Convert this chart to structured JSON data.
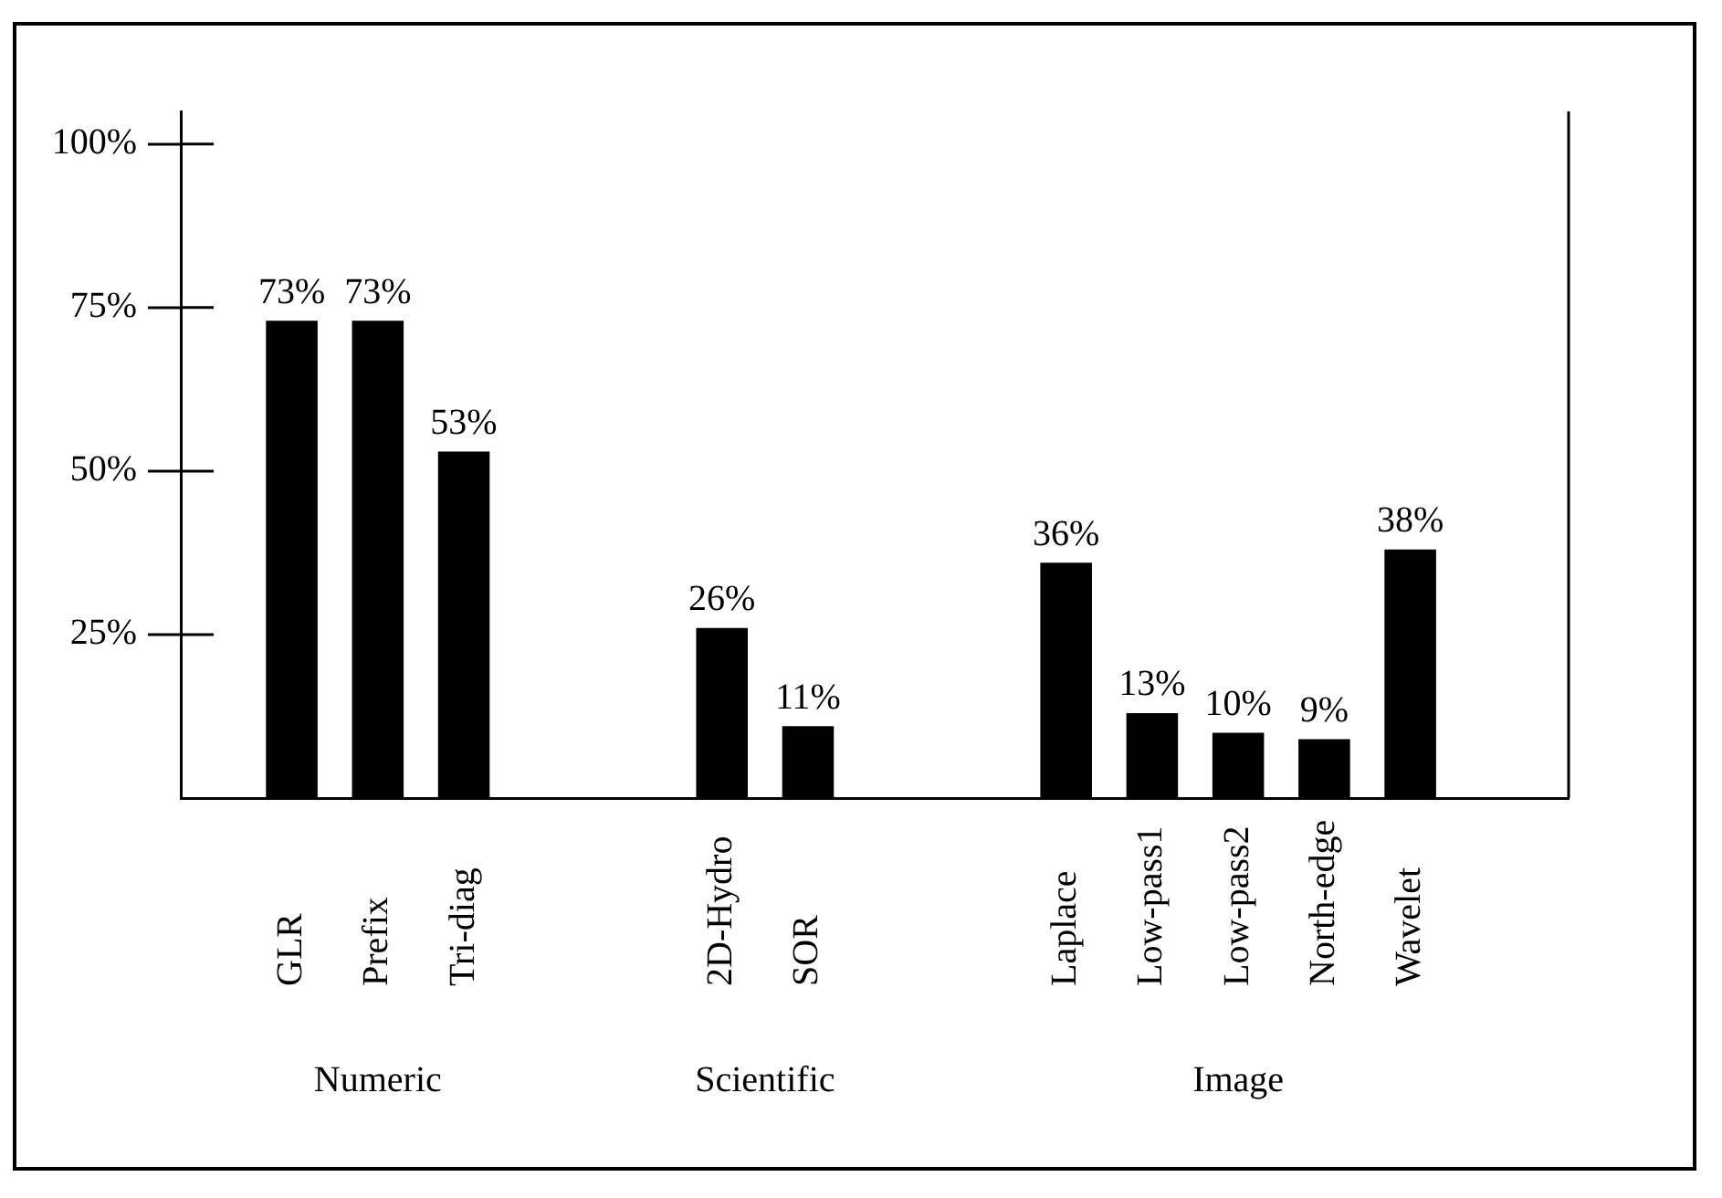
{
  "chart_data": {
    "type": "bar",
    "categories": [
      "GLR",
      "Prefix",
      "Tri-diag",
      null,
      null,
      "2D-Hydro",
      "SOR",
      null,
      null,
      "Laplace",
      "Low-pass1",
      "Low-pass2",
      "North-edge",
      "Wavelet"
    ],
    "values": [
      73,
      73,
      53,
      null,
      null,
      26,
      11,
      null,
      null,
      36,
      13,
      10,
      9,
      38
    ],
    "value_labels": [
      "73%",
      "73%",
      "53%",
      null,
      null,
      "26%",
      "11%",
      null,
      null,
      "36%",
      "13%",
      "10%",
      "9%",
      "38%"
    ],
    "color": "#000000",
    "ylim": [
      0,
      105
    ],
    "yticks": [
      {
        "value": 25,
        "label": "25%"
      },
      {
        "value": 50,
        "label": "50%"
      },
      {
        "value": 75,
        "label": "75%"
      },
      {
        "value": 100,
        "label": "100%"
      }
    ],
    "annotations": [
      "Numeric",
      "Scientific",
      "Image"
    ]
  }
}
